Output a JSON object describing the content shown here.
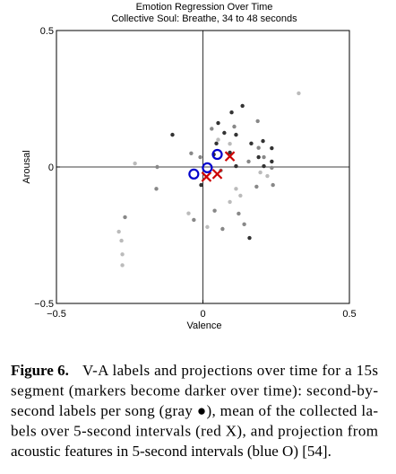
{
  "chart_data": {
    "type": "scatter",
    "title": "Emotion Regression Over Time",
    "subtitle": "Collective Soul: Breathe, 34 to 48 seconds",
    "xlabel": "Valence",
    "ylabel": "Arousal",
    "xlim": [
      -0.5,
      0.5
    ],
    "ylim": [
      -0.5,
      0.5
    ],
    "xticks": [
      {
        "value": -0.5,
        "label": "−0.5"
      },
      0,
      0.5
    ],
    "yticks": [
      {
        "value": -0.5,
        "label": "−0.5"
      },
      0,
      0.5
    ],
    "series": [
      {
        "color": "#bbbbbb",
        "marker": "dot",
        "x": [
          0.327,
          -0.287,
          -0.278,
          -0.275,
          -0.275,
          -0.232,
          0.113,
          0.128,
          0.052,
          0.092,
          -0.049,
          0.015,
          0.22,
          0.196,
          0.092
        ],
        "values": [
          0.27,
          -0.237,
          -0.27,
          -0.32,
          -0.36,
          0.013,
          -0.08,
          -0.105,
          0.1,
          0.085,
          -0.17,
          -0.22,
          -0.033,
          -0.02,
          -0.128
        ]
      },
      {
        "color": "#888888",
        "marker": "dot",
        "x": [
          -0.266,
          -0.159,
          -0.156,
          -0.04,
          -0.009,
          0.03,
          0.107,
          0.187,
          0.19,
          0.208,
          0.235,
          0.183,
          0.239,
          -0.031,
          0.04,
          0.067,
          0.122,
          0.141,
          0.061,
          0.156
        ],
        "values": [
          -0.184,
          -0.08,
          0,
          0.05,
          0.036,
          0.14,
          0.148,
          0.168,
          0.07,
          0.036,
          -0.003,
          -0.072,
          -0.066,
          -0.194,
          -0.16,
          -0.227,
          -0.171,
          -0.21,
          -0.013,
          0.02
        ]
      },
      {
        "color": "#333333",
        "marker": "dot",
        "x": [
          -0.104,
          0.098,
          0.135,
          0.052,
          0.046,
          0.073,
          0.113,
          0.165,
          0.19,
          0.205,
          0.208,
          0.235,
          0.092,
          0.037,
          -0.006,
          0.159,
          0.235,
          0.113
        ],
        "values": [
          0.118,
          0.2,
          0.224,
          0.161,
          0.086,
          0.125,
          0.118,
          0.086,
          0.036,
          0.095,
          0.003,
          0.069,
          0.053,
          0.046,
          -0.066,
          -0.26,
          0.02,
          0.003
        ]
      },
      {
        "color": "#cc0000",
        "marker": "x",
        "x": [
          0.012,
          0.049,
          0.092
        ],
        "values": [
          -0.036,
          -0.026,
          0.039
        ]
      },
      {
        "color": "#0000cc",
        "marker": "o",
        "x": [
          -0.031,
          0.015,
          0.049
        ],
        "values": [
          -0.026,
          -0.003,
          0.046
        ]
      }
    ]
  },
  "caption": {
    "label": "Figure 6.",
    "lines": [
      "V-A labels and projections over time for a 15s",
      "segment (markers become darker over time): second-by-",
      "second labels per song (gray ●), mean of the collected la-",
      "bels over 5-second intervals (red X), and projection from",
      "acoustic features in 5-second intervals (blue O) [54]."
    ]
  }
}
